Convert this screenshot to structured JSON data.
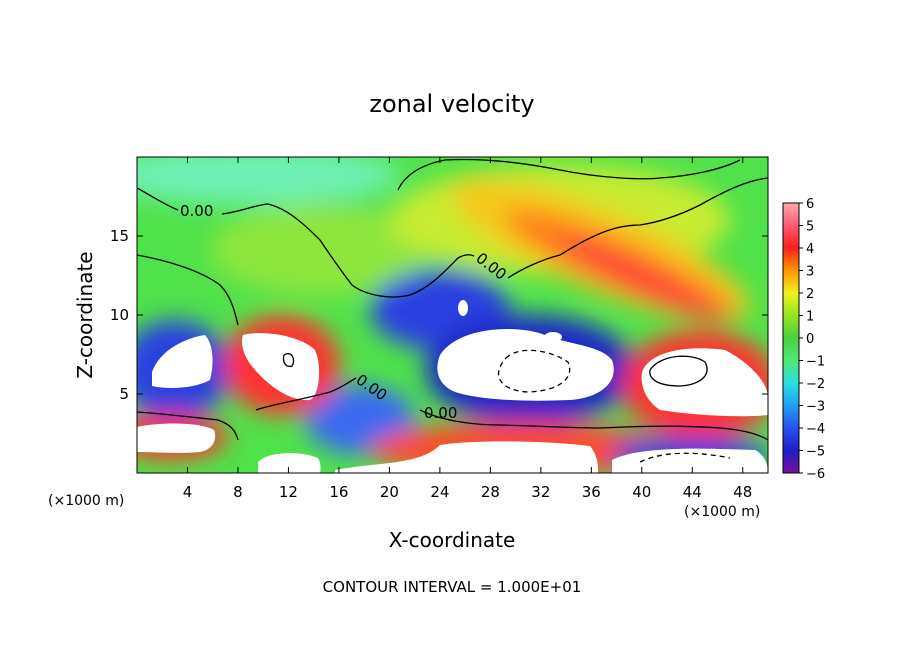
{
  "chart_data": {
    "type": "heatmap",
    "title": "zonal velocity",
    "xlabel": "X-coordinate",
    "ylabel": "Z-coordinate",
    "x_unit": "(×1000 m)",
    "x_unit_right": "(×1000 m)",
    "xlim": [
      0,
      50
    ],
    "ylim": [
      0,
      20
    ],
    "x_ticks": [
      4,
      8,
      12,
      16,
      20,
      24,
      28,
      32,
      36,
      40,
      44,
      48
    ],
    "y_ticks": [
      5,
      10,
      15
    ],
    "colorbar": {
      "min": -6,
      "max": 6,
      "ticks": [
        6,
        5,
        4,
        3,
        2,
        1,
        0,
        -1,
        -2,
        -3,
        -4,
        -5,
        -6
      ],
      "colors": [
        "#7a0fa0",
        "#1e1ec8",
        "#2a50f0",
        "#1ea0f0",
        "#28e0e0",
        "#50e878",
        "#46d23c",
        "#96e61e",
        "#f0f01e",
        "#ff9600",
        "#ff1e1e",
        "#ff5a6e",
        "#ffaaaa"
      ]
    },
    "contour_interval": "1.000E+01",
    "contour_labels": [
      "0.00",
      "0.00",
      "0.00",
      "0.00"
    ],
    "regions": [
      {
        "feature": "background",
        "value": 0.5
      },
      {
        "feature": "jet",
        "x": 34,
        "z": 14.5,
        "value": 5.5
      },
      {
        "feature": "cavity",
        "x": 4,
        "z": 6.5,
        "value": -6
      },
      {
        "feature": "cavity",
        "x": 11,
        "z": 7,
        "value": 6
      },
      {
        "feature": "cavity",
        "x": 30,
        "z": 6.5,
        "value": -6
      },
      {
        "feature": "cavity",
        "x": 43.5,
        "z": 5.5,
        "value": 6
      },
      {
        "feature": "lower-band",
        "x": 30,
        "z": 2.5,
        "value": 6
      }
    ],
    "footnote": "CONTOUR INTERVAL = 1.000E+01"
  }
}
